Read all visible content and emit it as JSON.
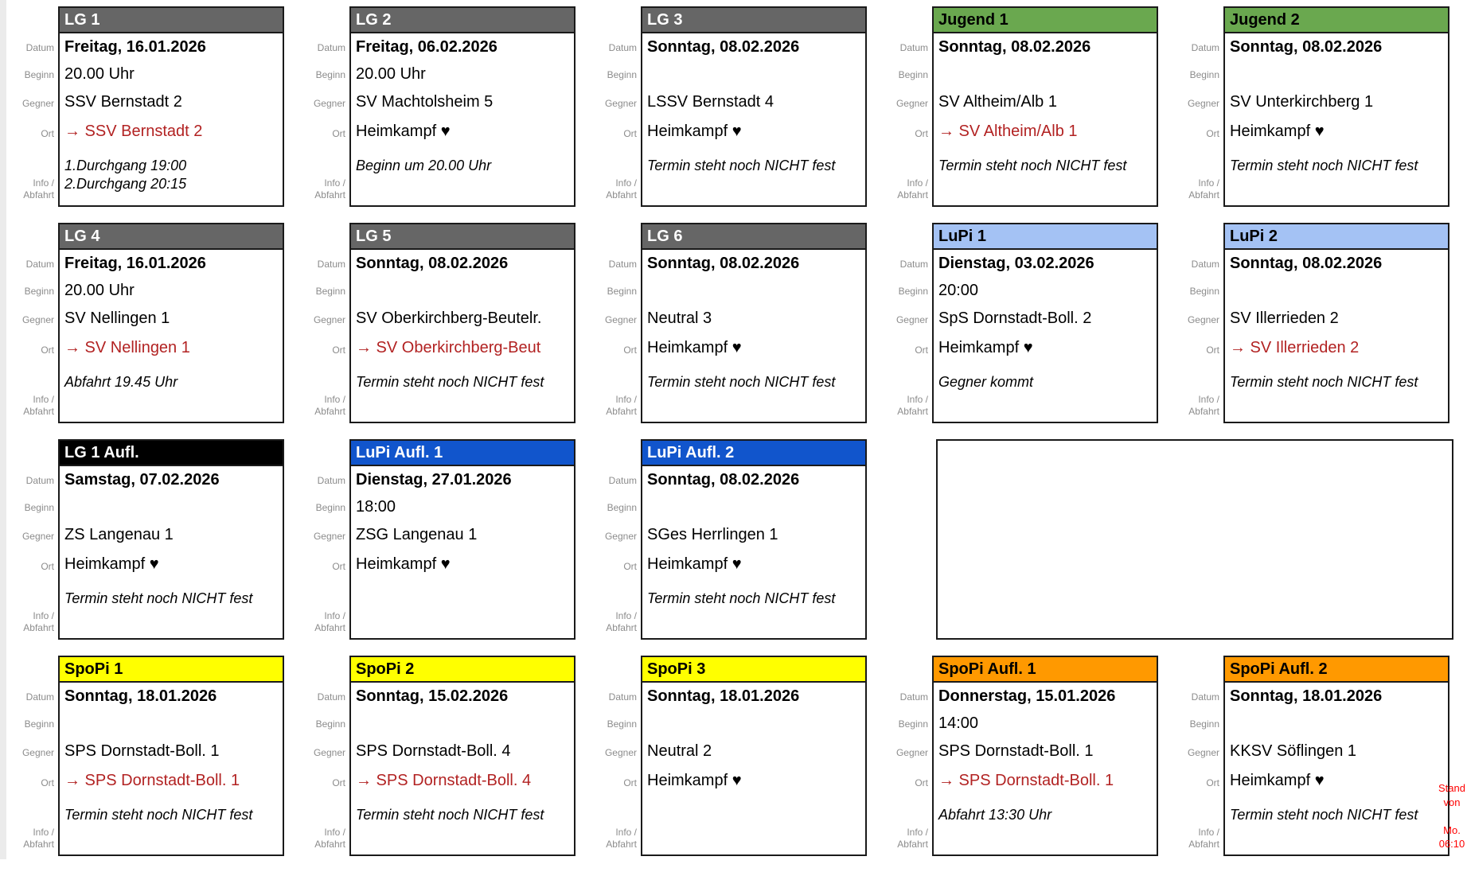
{
  "labels": {
    "datum": "Datum",
    "beginn": "Beginn",
    "gegner": "Gegner",
    "ort": "Ort",
    "info": "Info /\nAbfahrt"
  },
  "stand_note": {
    "text": "Stand\nvon\n\nMo.\n06:10",
    "color": "#ff0000"
  },
  "palette": {
    "header_gray": "#666666",
    "header_green": "#6aa84f",
    "header_lightblue": "#a4c2f4",
    "header_blue": "#1155cc",
    "header_black": "#000000",
    "header_yellow": "#ffff00",
    "header_orange": "#ff9900",
    "away_red": "#b22222",
    "label_gray": "#8c8c8c"
  },
  "rows": [
    {
      "cards": [
        {
          "title": "LG 1",
          "header_bg": "#666666",
          "header_fg": "#ffffff",
          "datum": "Freitag, 16.01.2026",
          "beginn": "20.00 Uhr",
          "gegner": "SSV Bernstadt 2",
          "ort": "→ SSV Bernstadt 2",
          "ort_color": "#b22222",
          "info": "1.Durchgang 19:00\n2.Durchgang 20:15"
        },
        {
          "title": "LG 2",
          "header_bg": "#666666",
          "header_fg": "#ffffff",
          "datum": "Freitag, 06.02.2026",
          "beginn": "20.00 Uhr",
          "gegner": "SV Machtolsheim 5",
          "ort": "Heimkampf ♥",
          "ort_color": "#000000",
          "info": "Beginn um 20.00 Uhr"
        },
        {
          "title": "LG 3",
          "header_bg": "#666666",
          "header_fg": "#ffffff",
          "datum": "Sonntag, 08.02.2026",
          "beginn": "",
          "gegner": "LSSV Bernstadt 4",
          "ort": "Heimkampf ♥",
          "ort_color": "#000000",
          "info": "Termin steht noch NICHT fest"
        },
        {
          "title": "Jugend 1",
          "header_bg": "#6aa84f",
          "header_fg": "#000000",
          "datum": "Sonntag, 08.02.2026",
          "beginn": "",
          "gegner": "SV Altheim/Alb 1",
          "ort": "→ SV Altheim/Alb 1",
          "ort_color": "#b22222",
          "info": "Termin steht noch NICHT fest"
        },
        {
          "title": "Jugend 2",
          "header_bg": "#6aa84f",
          "header_fg": "#000000",
          "datum": "Sonntag, 08.02.2026",
          "beginn": "",
          "gegner": "SV Unterkirchberg 1",
          "ort": "Heimkampf ♥",
          "ort_color": "#000000",
          "info": "Termin steht noch NICHT fest"
        }
      ]
    },
    {
      "cards": [
        {
          "title": "LG 4",
          "header_bg": "#666666",
          "header_fg": "#ffffff",
          "datum": "Freitag, 16.01.2026",
          "beginn": "20.00 Uhr",
          "gegner": "SV Nellingen 1",
          "ort": "→ SV Nellingen 1",
          "ort_color": "#b22222",
          "info": "Abfahrt 19.45 Uhr"
        },
        {
          "title": "LG 5",
          "header_bg": "#666666",
          "header_fg": "#ffffff",
          "datum": "Sonntag, 08.02.2026",
          "beginn": "",
          "gegner": "SV Oberkirchberg-Beutelr.",
          "ort": "→ SV Oberkirchberg-Beut",
          "ort_color": "#b22222",
          "info": "Termin steht noch NICHT fest"
        },
        {
          "title": "LG 6",
          "header_bg": "#666666",
          "header_fg": "#ffffff",
          "datum": "Sonntag, 08.02.2026",
          "beginn": "",
          "gegner": "Neutral 3",
          "ort": "Heimkampf ♥",
          "ort_color": "#000000",
          "info": "Termin steht noch NICHT fest"
        },
        {
          "title": "LuPi 1",
          "header_bg": "#a4c2f4",
          "header_fg": "#000000",
          "datum": "Dienstag, 03.02.2026",
          "beginn": "20:00",
          "gegner": "SpS Dornstadt-Boll. 2",
          "ort": "Heimkampf ♥",
          "ort_color": "#000000",
          "info": "Gegner kommt"
        },
        {
          "title": "LuPi 2",
          "header_bg": "#a4c2f4",
          "header_fg": "#000000",
          "datum": "Sonntag, 08.02.2026",
          "beginn": "",
          "gegner": "SV Illerrieden 2",
          "ort": "→ SV Illerrieden 2",
          "ort_color": "#b22222",
          "info": "Termin steht noch NICHT fest"
        }
      ]
    },
    {
      "cards": [
        {
          "title": "LG 1 Aufl.",
          "header_bg": "#000000",
          "header_fg": "#ffffff",
          "datum": "Samstag, 07.02.2026",
          "beginn": "",
          "gegner": "ZS Langenau 1",
          "ort": "Heimkampf ♥",
          "ort_color": "#000000",
          "info": "Termin steht noch NICHT fest"
        },
        {
          "title": "LuPi Aufl. 1",
          "header_bg": "#1155cc",
          "header_fg": "#ffffff",
          "datum": "Dienstag, 27.01.2026",
          "beginn": "18:00",
          "gegner": "ZSG Langenau 1",
          "ort": "Heimkampf ♥",
          "ort_color": "#000000",
          "info": ""
        },
        {
          "title": "LuPi Aufl. 2",
          "header_bg": "#1155cc",
          "header_fg": "#ffffff",
          "datum": "Sonntag, 08.02.2026",
          "beginn": "",
          "gegner": "SGes Herrlingen 1",
          "ort": "Heimkampf ♥",
          "ort_color": "#000000",
          "info": "Termin steht noch NICHT fest"
        },
        {
          "empty": true
        }
      ]
    },
    {
      "cards": [
        {
          "title": "SpoPi 1",
          "header_bg": "#ffff00",
          "header_fg": "#000000",
          "datum": "Sonntag, 18.01.2026",
          "beginn": "",
          "gegner": "SPS Dornstadt-Boll. 1",
          "ort": "→ SPS Dornstadt-Boll. 1",
          "ort_color": "#b22222",
          "info": "Termin steht noch NICHT fest"
        },
        {
          "title": "SpoPi 2",
          "header_bg": "#ffff00",
          "header_fg": "#000000",
          "datum": "Sonntag, 15.02.2026",
          "beginn": "",
          "gegner": "SPS Dornstadt-Boll. 4",
          "ort": "→ SPS Dornstadt-Boll. 4",
          "ort_color": "#b22222",
          "info": "Termin steht noch NICHT fest"
        },
        {
          "title": "SpoPi 3",
          "header_bg": "#ffff00",
          "header_fg": "#000000",
          "datum": "Sonntag, 18.01.2026",
          "beginn": "",
          "gegner": "Neutral 2",
          "ort": "Heimkampf ♥",
          "ort_color": "#000000",
          "info": ""
        },
        {
          "title": "SpoPi Aufl. 1",
          "header_bg": "#ff9900",
          "header_fg": "#000000",
          "datum": "Donnerstag, 15.01.2026",
          "beginn": "14:00",
          "gegner": "SPS Dornstadt-Boll. 1",
          "ort": "→ SPS Dornstadt-Boll. 1",
          "ort_color": "#b22222",
          "info": "Abfahrt 13:30 Uhr"
        },
        {
          "title": "SpoPi Aufl. 2",
          "header_bg": "#ff9900",
          "header_fg": "#000000",
          "datum": "Sonntag, 18.01.2026",
          "beginn": "",
          "gegner": "KKSV Söflingen 1",
          "ort": "Heimkampf ♥",
          "ort_color": "#000000",
          "info": "Termin steht noch NICHT fest"
        }
      ]
    }
  ]
}
